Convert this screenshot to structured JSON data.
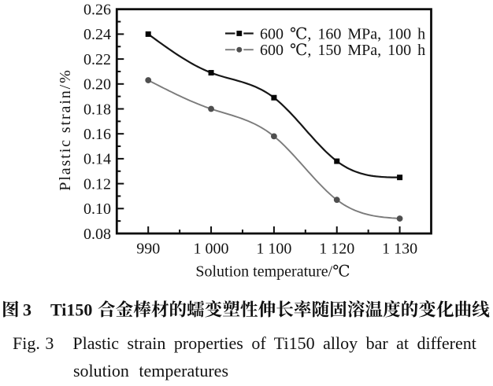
{
  "figure": {
    "caption_zh": "图 3　Ti150 合金棒材的蠕变塑性伸长率随固溶温度的变化曲线",
    "caption_zh_latin_num": "3",
    "caption_zh_latin_alloy": "Ti150",
    "caption_en_label": "Fig. 3",
    "caption_en_line1": "Plastic strain properties of Ti150 alloy bar at different",
    "caption_en_line2": "solution temperatures"
  },
  "chart_data": {
    "type": "line",
    "title": "",
    "xlabel": "Solution temperature/℃",
    "ylabel": "Plastic strain/%",
    "categories": [
      990,
      1000,
      1100,
      1120,
      1130
    ],
    "x_tick_labels": [
      "990",
      "1 000",
      "1 100",
      "1 120",
      "1 130"
    ],
    "y_tick_labels": [
      "0.26",
      "0.24",
      "0.22",
      "0.20",
      "0.18",
      "0.16",
      "0.14",
      "0.12",
      "0.10",
      "0.08"
    ],
    "ylim": [
      0.08,
      0.26
    ],
    "y_major_step": 0.02,
    "y_minor_step": 0.01,
    "grid": false,
    "legend_position": "inside-top-right",
    "frame_color": "#0d0d0d",
    "series": [
      {
        "name": "600 ℃, 160 MPa, 100 h",
        "marker": "square",
        "line_color": "#161616",
        "marker_color": "#060606",
        "values": [
          0.24,
          0.209,
          0.189,
          0.138,
          0.125
        ]
      },
      {
        "name": "600 ℃, 150 MPa, 100 h",
        "marker": "circle",
        "line_color": "#7b7b7b",
        "marker_color": "#4f4f4f",
        "values": [
          0.203,
          0.18,
          0.158,
          0.107,
          0.092
        ]
      }
    ]
  }
}
